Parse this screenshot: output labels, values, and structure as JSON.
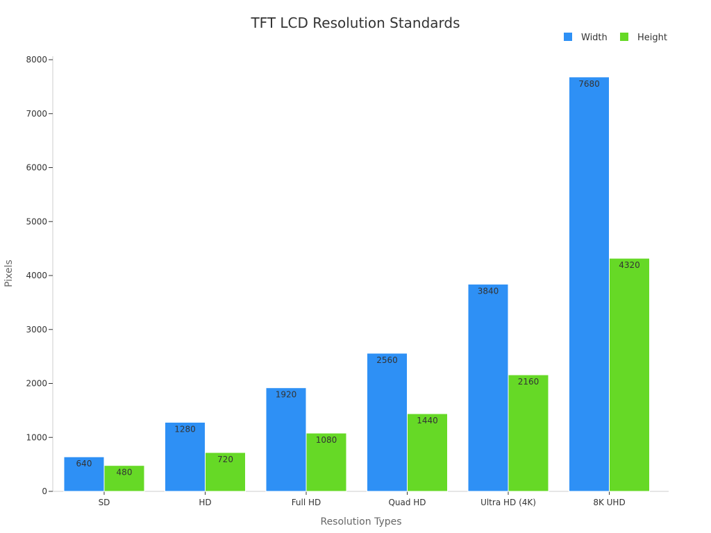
{
  "chart_data": {
    "type": "bar",
    "title": "TFT LCD Resolution Standards",
    "xlabel": "Resolution Types",
    "ylabel": "Pixels",
    "categories": [
      "SD",
      "HD",
      "Full HD",
      "Quad HD",
      "Ultra HD (4K)",
      "8K UHD"
    ],
    "series": [
      {
        "name": "Width",
        "color": "#2E90F5",
        "values": [
          640,
          1280,
          1920,
          2560,
          3840,
          7680
        ]
      },
      {
        "name": "Height",
        "color": "#66D926",
        "values": [
          480,
          720,
          1080,
          1440,
          2160,
          4320
        ]
      }
    ],
    "ylim": [
      0,
      8000
    ],
    "yticks": [
      0,
      1000,
      2000,
      3000,
      4000,
      5000,
      6000,
      7000,
      8000
    ],
    "legend_position": "top-right",
    "grid": false,
    "data_labels": true
  }
}
